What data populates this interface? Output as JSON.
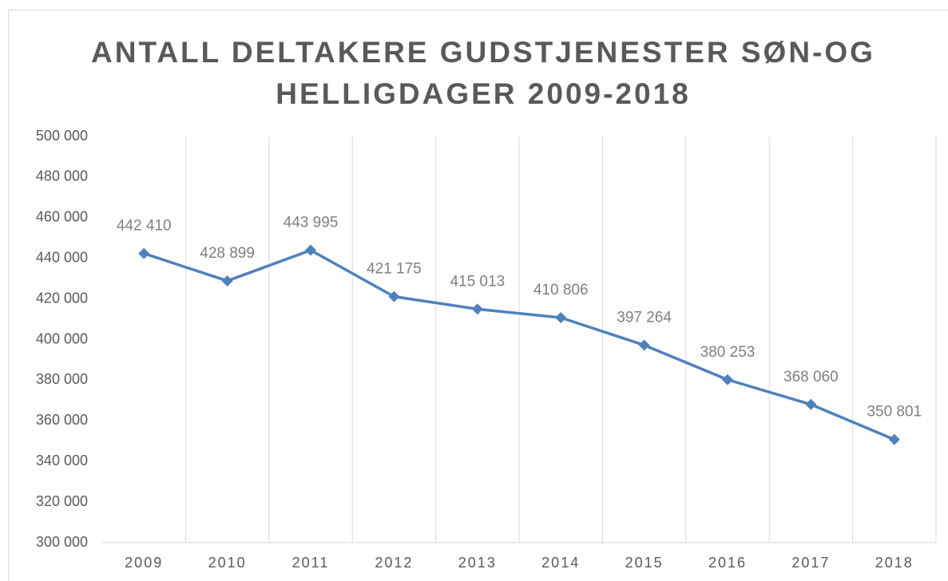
{
  "chart_data": {
    "type": "line",
    "title": "ANTALL DELTAKERE GUDSTJENESTER SØN-OG HELLIGDAGER 2009-2018",
    "categories": [
      "2009",
      "2010",
      "2011",
      "2012",
      "2013",
      "2014",
      "2015",
      "2016",
      "2017",
      "2018"
    ],
    "series": [
      {
        "color": "#4f81bd",
        "values": [
          442410,
          428899,
          443995,
          421175,
          415013,
          410806,
          397264,
          380253,
          368060,
          350801
        ],
        "value_labels": [
          "442 410",
          "428 899",
          "443 995",
          "421 175",
          "415 013",
          "410 806",
          "397 264",
          "380 253",
          "368 060",
          "350 801"
        ]
      }
    ],
    "ylim": [
      300000,
      500000
    ],
    "yticks": [
      {
        "value": 300000,
        "label": "300 000"
      },
      {
        "value": 320000,
        "label": "320 000"
      },
      {
        "value": 340000,
        "label": "340 000"
      },
      {
        "value": 360000,
        "label": "360 000"
      },
      {
        "value": 380000,
        "label": "380 000"
      },
      {
        "value": 400000,
        "label": "400 000"
      },
      {
        "value": 420000,
        "label": "420 000"
      },
      {
        "value": 440000,
        "label": "440 000"
      },
      {
        "value": 460000,
        "label": "460 000"
      },
      {
        "value": 480000,
        "label": "480 000"
      },
      {
        "value": 500000,
        "label": "500 000"
      }
    ]
  }
}
